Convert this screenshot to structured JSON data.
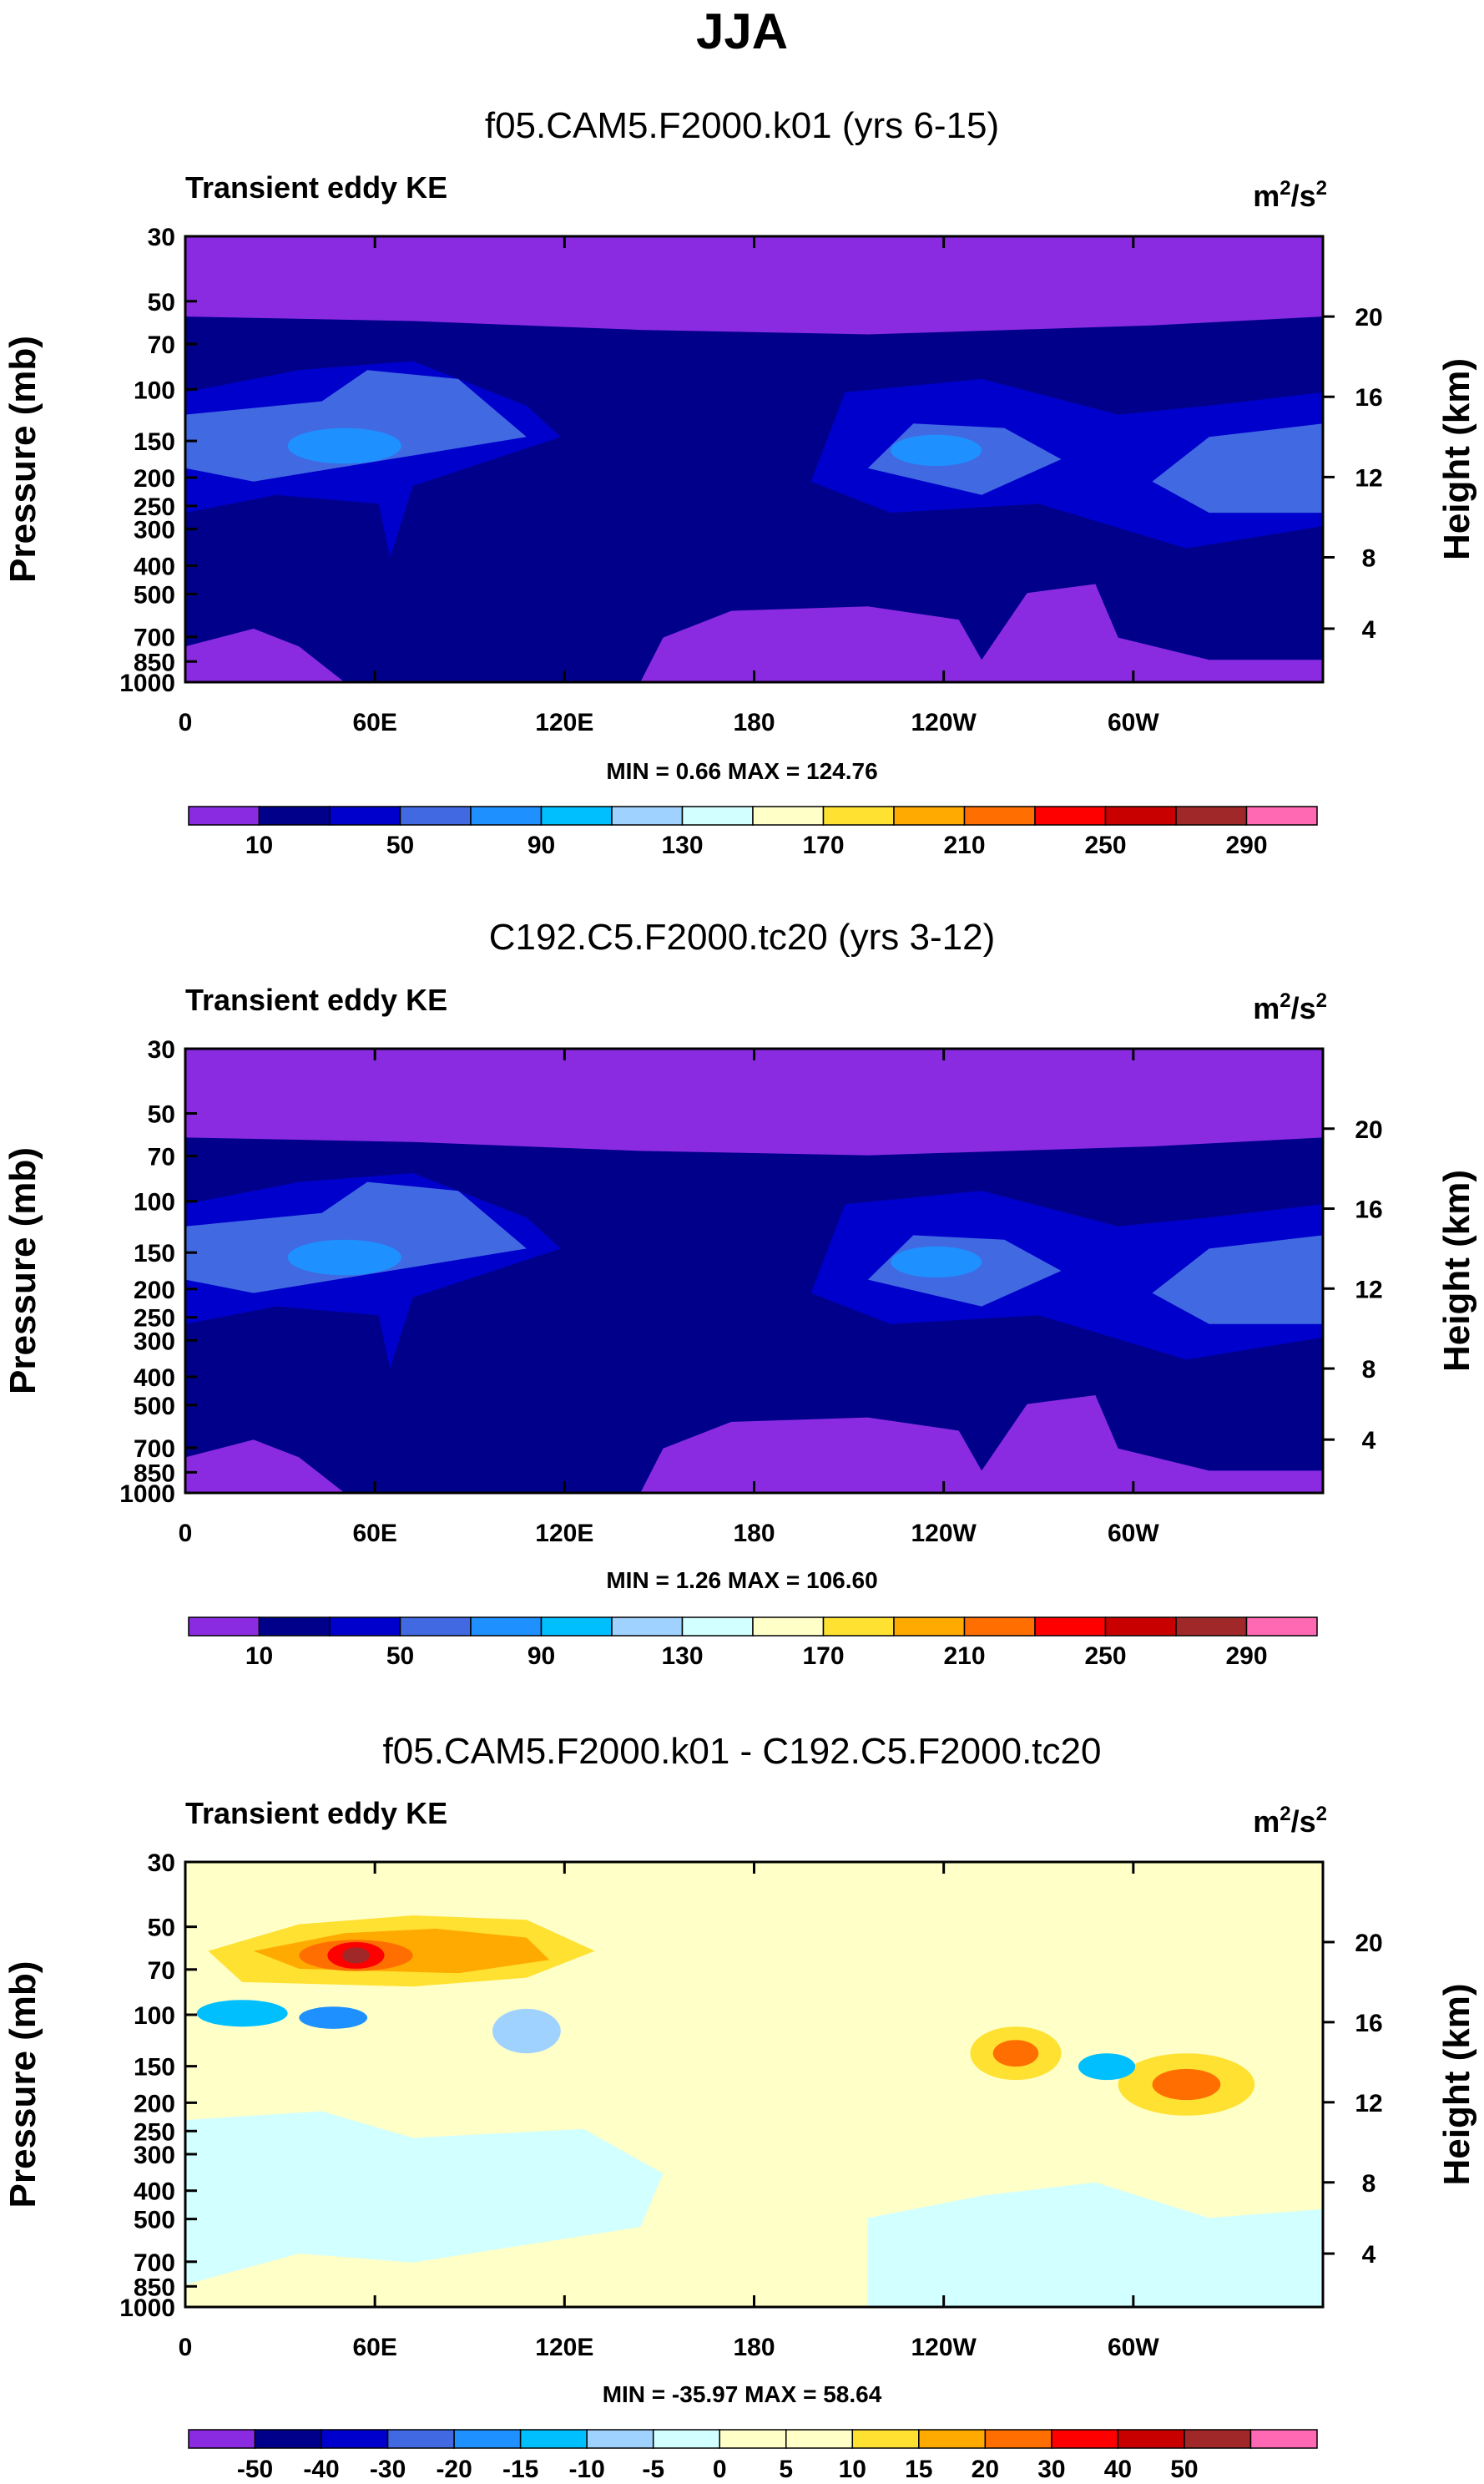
{
  "main_title": "JJA",
  "chart_data": [
    {
      "type": "heatmap",
      "title": "f05.CAM5.F2000.k01 (yrs 6-15)",
      "subtitle_left": "Transient eddy KE",
      "units": "m²/s²",
      "units_base": "m",
      "units_sup1": "2",
      "units_mid": "/s",
      "units_sup2": "2",
      "ylabel_left": "Pressure (mb)",
      "ylabel_right": "Height (km)",
      "xlabel": "",
      "x_ticks": [
        "0",
        "60E",
        "120E",
        "180",
        "120W",
        "60W"
      ],
      "y_ticks_pressure": [
        "30",
        "50",
        "70",
        "100",
        "150",
        "200",
        "250",
        "300",
        "400",
        "500",
        "700",
        "850",
        "1000"
      ],
      "y_ticks_height": [
        "20",
        "16",
        "12",
        "8",
        "4"
      ],
      "stats": "MIN =   0.66  MAX = 124.76",
      "min": 0.66,
      "max": 124.76,
      "colorbar_labels": [
        "10",
        "50",
        "90",
        "130",
        "170",
        "210",
        "250",
        "290"
      ]
    },
    {
      "type": "heatmap",
      "title": "C192.C5.F2000.tc20 (yrs 3-12)",
      "subtitle_left": "Transient eddy KE",
      "units": "m²/s²",
      "units_base": "m",
      "units_sup1": "2",
      "units_mid": "/s",
      "units_sup2": "2",
      "ylabel_left": "Pressure (mb)",
      "ylabel_right": "Height (km)",
      "xlabel": "",
      "x_ticks": [
        "0",
        "60E",
        "120E",
        "180",
        "120W",
        "60W"
      ],
      "y_ticks_pressure": [
        "30",
        "50",
        "70",
        "100",
        "150",
        "200",
        "250",
        "300",
        "400",
        "500",
        "700",
        "850",
        "1000"
      ],
      "y_ticks_height": [
        "20",
        "16",
        "12",
        "8",
        "4"
      ],
      "stats": "MIN =   1.26  MAX = 106.60",
      "min": 1.26,
      "max": 106.6,
      "colorbar_labels": [
        "10",
        "50",
        "90",
        "130",
        "170",
        "210",
        "250",
        "290"
      ]
    },
    {
      "type": "heatmap",
      "title": "f05.CAM5.F2000.k01 - C192.C5.F2000.tc20",
      "subtitle_left": "Transient eddy KE",
      "units": "m²/s²",
      "units_base": "m",
      "units_sup1": "2",
      "units_mid": "/s",
      "units_sup2": "2",
      "ylabel_left": "Pressure (mb)",
      "ylabel_right": "Height (km)",
      "xlabel": "",
      "x_ticks": [
        "0",
        "60E",
        "120E",
        "180",
        "120W",
        "60W"
      ],
      "y_ticks_pressure": [
        "30",
        "50",
        "70",
        "100",
        "150",
        "200",
        "250",
        "300",
        "400",
        "500",
        "700",
        "850",
        "1000"
      ],
      "y_ticks_height": [
        "20",
        "16",
        "12",
        "8",
        "4"
      ],
      "stats": "MIN = -35.97  MAX = 58.64",
      "min": -35.97,
      "max": 58.64,
      "colorbar_labels": [
        "-50",
        "-40",
        "-30",
        "-20",
        "-15",
        "-10",
        "-5",
        "0",
        "5",
        "10",
        "15",
        "20",
        "30",
        "40",
        "50"
      ]
    }
  ],
  "colors": {
    "abs_levels": [
      "#8a2be2",
      "#00008b",
      "#0000cd",
      "#4169e1",
      "#1e90ff",
      "#00bfff",
      "#a0d2ff",
      "#d2ffff",
      "#ffffc8",
      "#ffe132",
      "#ffaa00",
      "#ff6e00",
      "#ff0000",
      "#c80000",
      "#a02828",
      "#ff69b4"
    ],
    "diff_levels": [
      "#8a2be2",
      "#00008b",
      "#0000cd",
      "#4169e1",
      "#1e90ff",
      "#00bfff",
      "#a0d2ff",
      "#d2ffff",
      "#ffffc8",
      "#ffffc8",
      "#ffe132",
      "#ffaa00",
      "#ff6e00",
      "#ff0000",
      "#c80000",
      "#a02828",
      "#ff69b4"
    ]
  }
}
